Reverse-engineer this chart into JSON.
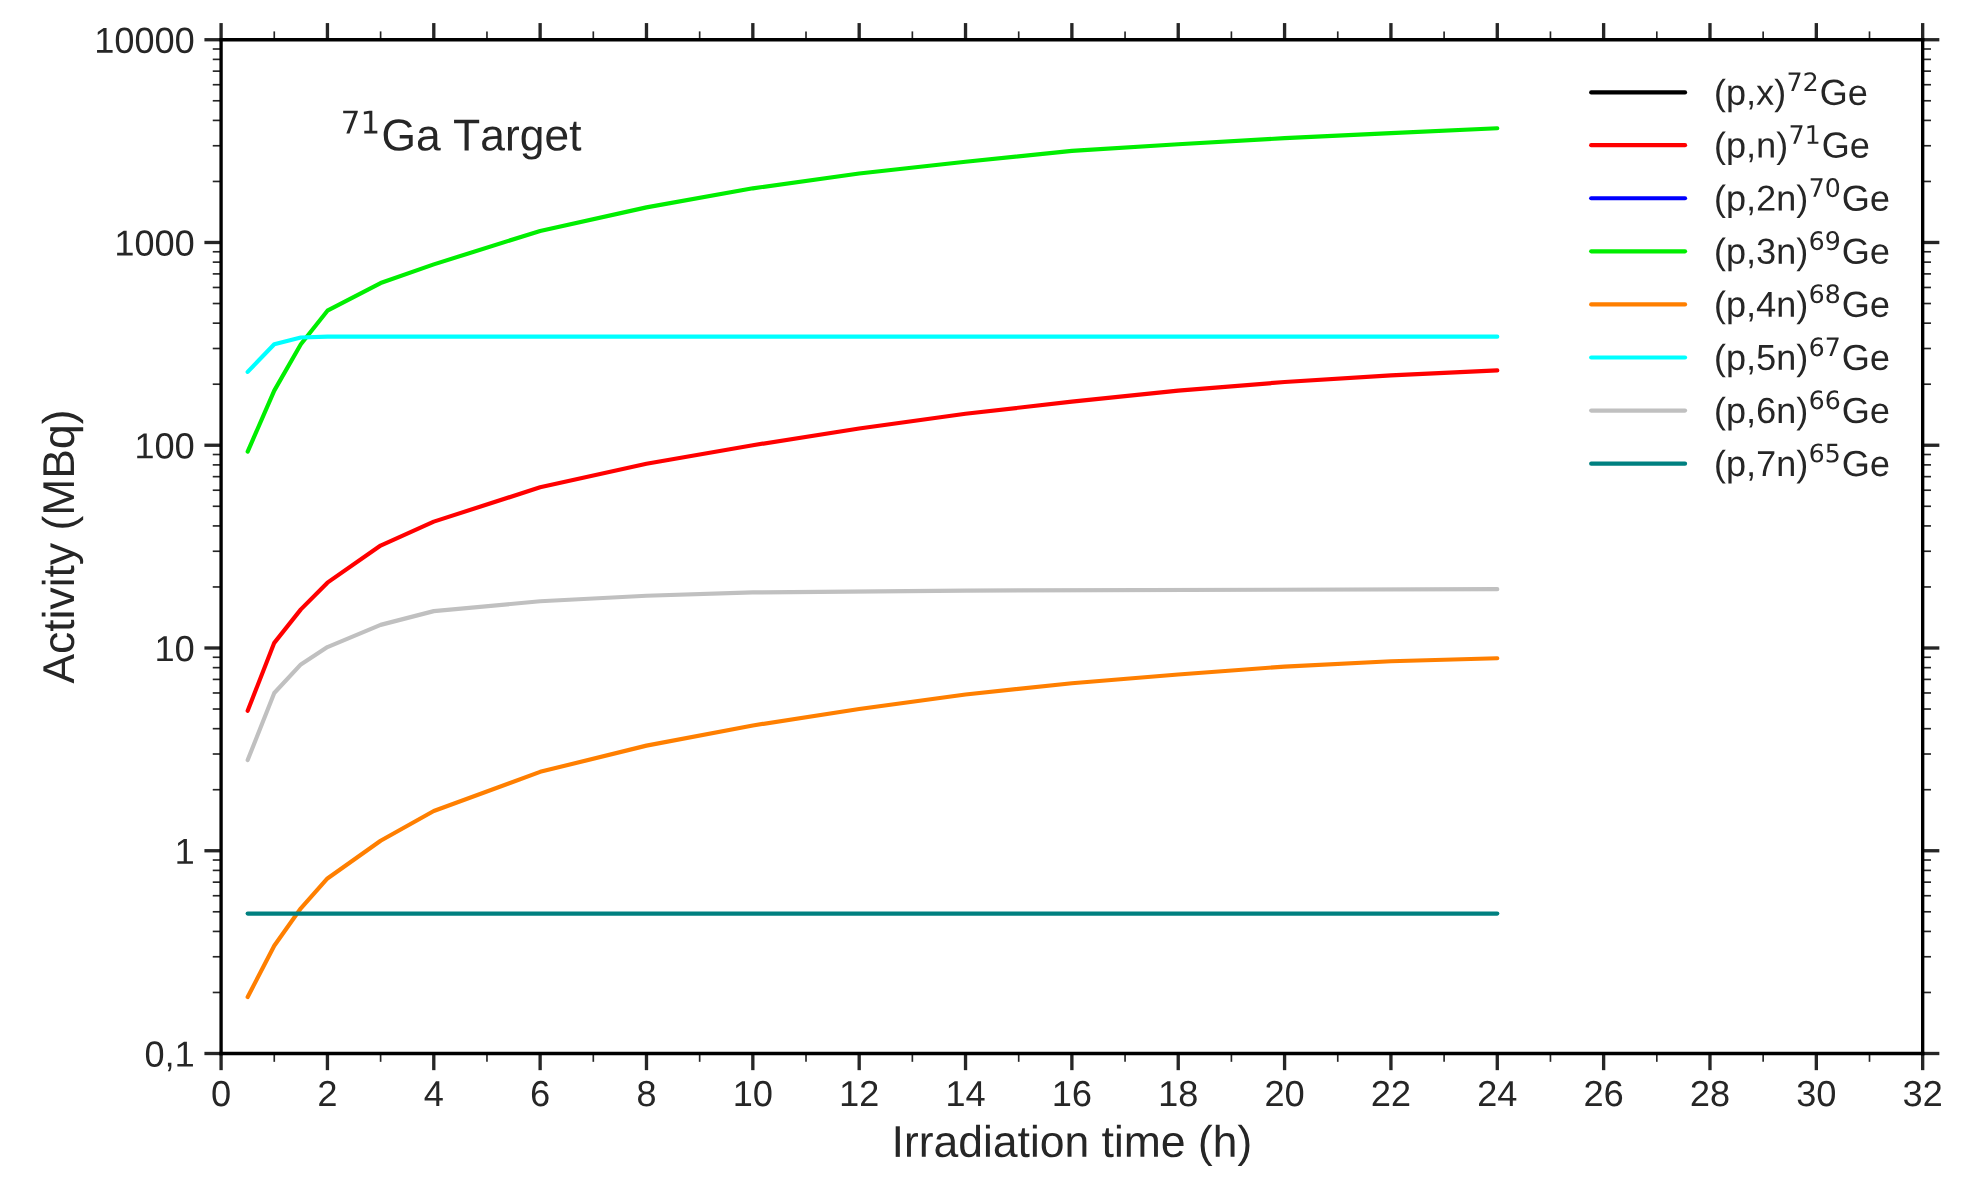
{
  "chart_data": {
    "type": "line",
    "xlabel": "Irradiation time (h)",
    "ylabel": "Activity (MBq)",
    "annotations": [
      "$^{71}$Ga Target"
    ],
    "log": "y",
    "grid": false,
    "legend": "top right",
    "line_style": "solid",
    "marker": "none",
    "xlim": [
      0,
      32
    ],
    "xticks": [
      0,
      2,
      4,
      6,
      8,
      10,
      12,
      14,
      16,
      18,
      20,
      22,
      24,
      26,
      28,
      30,
      32
    ],
    "ylim": [
      0.1,
      10000
    ],
    "yticks": [
      {
        "value": 0.1,
        "label": "0,1"
      },
      1,
      10,
      100,
      1000,
      10000
    ],
    "series": [
      {
        "name": "(p,x)$^{72}$Ge",
        "color": "#000000"
      },
      {
        "name": "(p,n)$^{71}$Ge",
        "color": "#ff0000",
        "x": [
          0.5,
          1,
          1.5,
          2,
          3,
          4,
          6,
          8,
          10,
          12,
          14,
          16,
          18,
          20,
          22,
          24
        ],
        "values": [
          4.9,
          10.6,
          15.5,
          21,
          32,
          42,
          62,
          81,
          100,
          121,
          143,
          164,
          186,
          205,
          221,
          234
        ]
      },
      {
        "name": "(p,2n)$^{70}$Ge",
        "color": "#0000ff"
      },
      {
        "name": "(p,3n)$^{69}$Ge",
        "color": "#00ee00",
        "x": [
          0.5,
          1,
          1.5,
          2,
          3,
          4,
          6,
          8,
          10,
          12,
          14,
          16,
          18,
          20,
          22,
          24
        ],
        "values": [
          93,
          186,
          315,
          461,
          631,
          780,
          1140,
          1490,
          1850,
          2190,
          2500,
          2830,
          3050,
          3270,
          3460,
          3660
        ]
      },
      {
        "name": "(p,4n)$^{68}$Ge",
        "color": "#ff7f00",
        "x": [
          0.5,
          1,
          1.5,
          2,
          3,
          4,
          6,
          8,
          10,
          12,
          14,
          16,
          18,
          20,
          22,
          24
        ],
        "values": [
          0.19,
          0.34,
          0.52,
          0.73,
          1.12,
          1.57,
          2.45,
          3.3,
          4.15,
          5.0,
          5.9,
          6.7,
          7.4,
          8.1,
          8.6,
          8.9
        ]
      },
      {
        "name": "(p,5n)$^{67}$Ge",
        "color": "#00ffff",
        "x": [
          0.5,
          1,
          1.5,
          2,
          24
        ],
        "values": [
          230,
          315,
          340,
          343,
          343
        ]
      },
      {
        "name": "(p,6n)$^{66}$Ge",
        "color": "#c0c0c0",
        "x": [
          0.5,
          1,
          1.5,
          2,
          3,
          4,
          6,
          8,
          10,
          14,
          24
        ],
        "values": [
          2.8,
          6,
          8.3,
          10.1,
          13,
          15.2,
          17,
          18.1,
          18.8,
          19.2,
          19.5
        ]
      },
      {
        "name": "(p,7n)$^{65}$Ge",
        "color": "#008080",
        "x": [
          0.5,
          24
        ],
        "values": [
          0.49,
          0.49
        ]
      }
    ]
  }
}
